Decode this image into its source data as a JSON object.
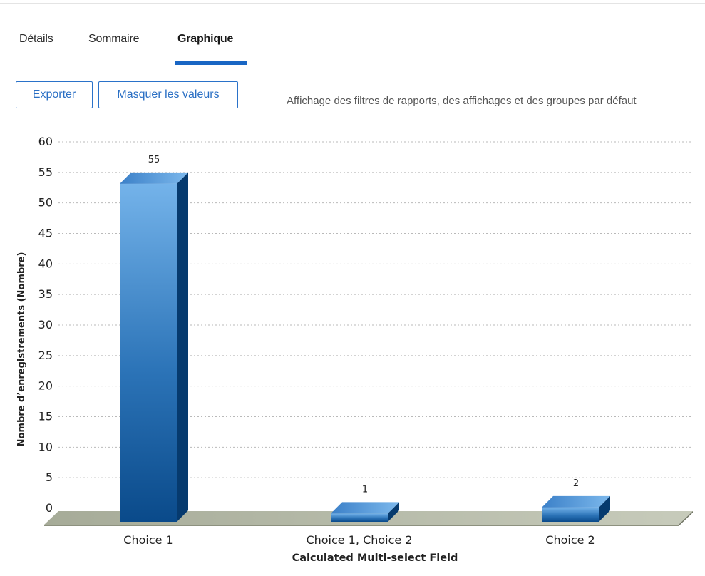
{
  "tabs": [
    {
      "label": "Détails",
      "active": false
    },
    {
      "label": "Sommaire",
      "active": false
    },
    {
      "label": "Graphique",
      "active": true
    }
  ],
  "toolbar": {
    "export_label": "Exporter",
    "hide_values_label": "Masquer les valeurs",
    "filter_note": "Affichage des filtres de rapports, des affichages et des groupes par défaut"
  },
  "colors": {
    "accent": "#1966c4",
    "bar_light": "#6fb0e8",
    "bar_dark": "#0b4d8e",
    "floor": "#b3b8a6"
  },
  "chart_data": {
    "type": "bar",
    "categories": [
      "Choice 1",
      "Choice 1, Choice 2",
      "Choice 2"
    ],
    "values": [
      55,
      1,
      2
    ],
    "xlabel": "Calculated Multi-select Field",
    "ylabel": "Nombre d’enregistrements (Nombre)",
    "ylim": [
      0,
      60
    ],
    "yticks": [
      0,
      5,
      10,
      15,
      20,
      25,
      30,
      35,
      40,
      45,
      50,
      55,
      60
    ],
    "grid": true,
    "style": "3d"
  }
}
